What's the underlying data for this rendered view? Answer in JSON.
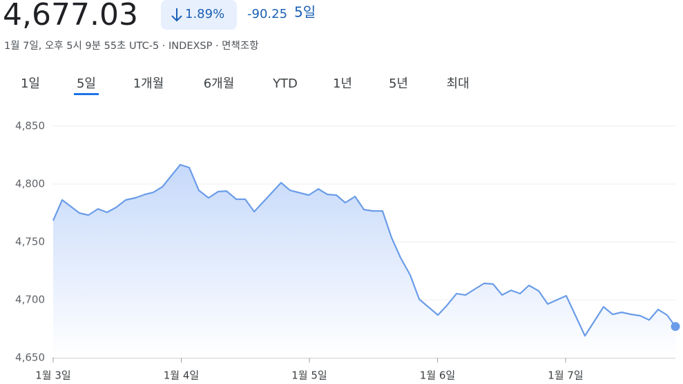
{
  "header": {
    "price": "4,677.03",
    "change_percent": "1.89%",
    "change": "-90.25",
    "period": "5일",
    "subtitle": "1월 7일, 오후 5시 9분 55초 UTC-5 · INDEXSP · 면책조항"
  },
  "tabs": [
    "1일",
    "5일",
    "1개월",
    "6개월",
    "YTD",
    "1년",
    "5년",
    "최대"
  ],
  "chart_data": {
    "type": "line",
    "color": "#6a9ce8",
    "x": [
      0,
      0.07,
      0.205,
      0.275,
      0.35,
      0.42,
      0.491,
      0.566,
      0.642,
      0.717,
      0.782,
      0.852,
      0.992,
      1.062,
      1.137,
      1.213,
      1.288,
      1.353,
      1.429,
      1.499,
      1.569,
      1.779,
      1.849,
      1.995,
      2.07,
      2.14,
      2.21,
      2.28,
      2.356,
      2.426,
      2.496,
      2.571,
      2.642,
      2.712,
      2.787,
      2.857,
      3.003,
      3.073,
      3.148,
      3.218,
      3.294,
      3.364,
      3.434,
      3.504,
      3.574,
      3.644,
      3.714,
      3.79,
      3.86,
      4.005,
      4.151,
      4.296,
      4.367,
      4.437,
      4.512,
      4.582,
      4.652,
      4.722,
      4.792,
      4.857
    ],
    "values": [
      4768.5,
      4786.3,
      4775,
      4773.2,
      4778.6,
      4775.6,
      4779.8,
      4786.3,
      4788.1,
      4791.1,
      4792.9,
      4797.6,
      4816.7,
      4814.3,
      4794.6,
      4788.1,
      4793.5,
      4794.0,
      4786.9,
      4786.9,
      4776.2,
      4801.2,
      4794.6,
      4790.5,
      4795.8,
      4791.1,
      4790.5,
      4783.9,
      4789.3,
      4778,
      4776.8,
      4776.8,
      4753.6,
      4736.3,
      4721.4,
      4700.6,
      4686.9,
      4695.2,
      4705.4,
      4704.2,
      4709.5,
      4714.3,
      4713.7,
      4704.2,
      4708.3,
      4705.4,
      4712.5,
      4707.7,
      4696.4,
      4703.6,
      4669.0,
      4694.0,
      4687.5,
      4689.3,
      4687.5,
      4686.3,
      4682.7,
      4691.7,
      4686.9,
      4677.03
    ],
    "xlim": [
      0,
      4.857
    ],
    "xticks": [
      {
        "value": 0,
        "label": "1월 3일"
      },
      {
        "value": 1,
        "label": "1월 4일"
      },
      {
        "value": 2,
        "label": "1월 5일"
      },
      {
        "value": 3,
        "label": "1월 6일"
      },
      {
        "value": 4,
        "label": "1월 7일"
      }
    ],
    "ylim": [
      4650,
      4850
    ],
    "yticks": [
      {
        "value": 4650,
        "label": "4,650"
      },
      {
        "value": 4700,
        "label": "4,700"
      },
      {
        "value": 4750,
        "label": "4,750"
      },
      {
        "value": 4800,
        "label": "4,800"
      },
      {
        "value": 4850,
        "label": "4,850"
      }
    ],
    "grid": true
  }
}
